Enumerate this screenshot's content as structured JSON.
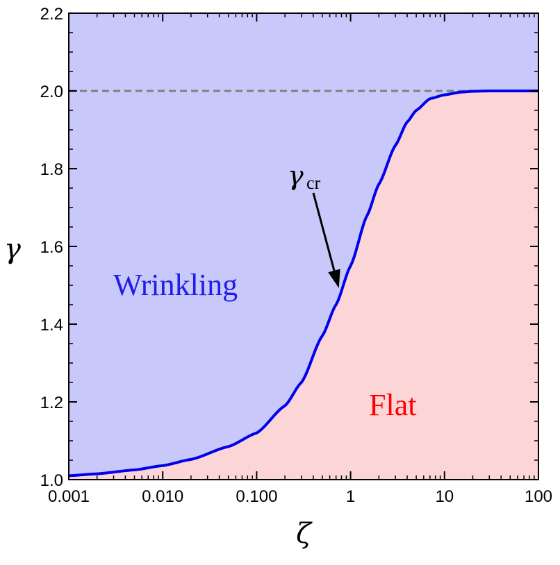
{
  "chart_data": {
    "type": "area",
    "xlabel": "ζ",
    "ylabel": "γ",
    "x_scale": "log",
    "xlim": [
      0.001,
      100
    ],
    "ylim": [
      1.0,
      2.2
    ],
    "x_ticks": [
      {
        "value": 0.001,
        "label": "0.001"
      },
      {
        "value": 0.01,
        "label": "0.010"
      },
      {
        "value": 0.1,
        "label": "0.100"
      },
      {
        "value": 1,
        "label": "1"
      },
      {
        "value": 10,
        "label": "10"
      },
      {
        "value": 100,
        "label": "100"
      }
    ],
    "y_ticks": [
      {
        "value": 1.0,
        "label": "1.0"
      },
      {
        "value": 1.2,
        "label": "1.2"
      },
      {
        "value": 1.4,
        "label": "1.4"
      },
      {
        "value": 1.6,
        "label": "1.6"
      },
      {
        "value": 1.8,
        "label": "1.8"
      },
      {
        "value": 2.0,
        "label": "2.0"
      },
      {
        "value": 2.2,
        "label": "2.2"
      }
    ],
    "grid": false,
    "series": [
      {
        "name": "γcr",
        "color": "#0000ee",
        "x": [
          0.001,
          0.002,
          0.005,
          0.01,
          0.02,
          0.05,
          0.1,
          0.2,
          0.3,
          0.5,
          0.7,
          1,
          1.5,
          2,
          3,
          4,
          5,
          7,
          10,
          15,
          20,
          30,
          50,
          100
        ],
        "y": [
          1.01,
          1.015,
          1.025,
          1.036,
          1.052,
          1.085,
          1.12,
          1.19,
          1.25,
          1.37,
          1.45,
          1.55,
          1.68,
          1.76,
          1.86,
          1.92,
          1.95,
          1.98,
          1.99,
          1.997,
          1.999,
          2.0,
          2.0,
          2.0
        ]
      }
    ],
    "reference_lines": [
      {
        "axis": "y",
        "value": 2.0,
        "style": "dashed",
        "color": "#808080"
      }
    ],
    "regions": [
      {
        "label": "Wrinkling",
        "where": "above curve",
        "fill": "#c8c8fa",
        "text_color": "#1e1ee6"
      },
      {
        "label": "Flat",
        "where": "below curve",
        "fill": "#fcd6d6",
        "text_color": "#ff0000"
      }
    ],
    "annotations": [
      {
        "text": "γ",
        "subscript": "cr",
        "points_to": {
          "x": 0.75,
          "y": 1.5
        }
      }
    ]
  }
}
